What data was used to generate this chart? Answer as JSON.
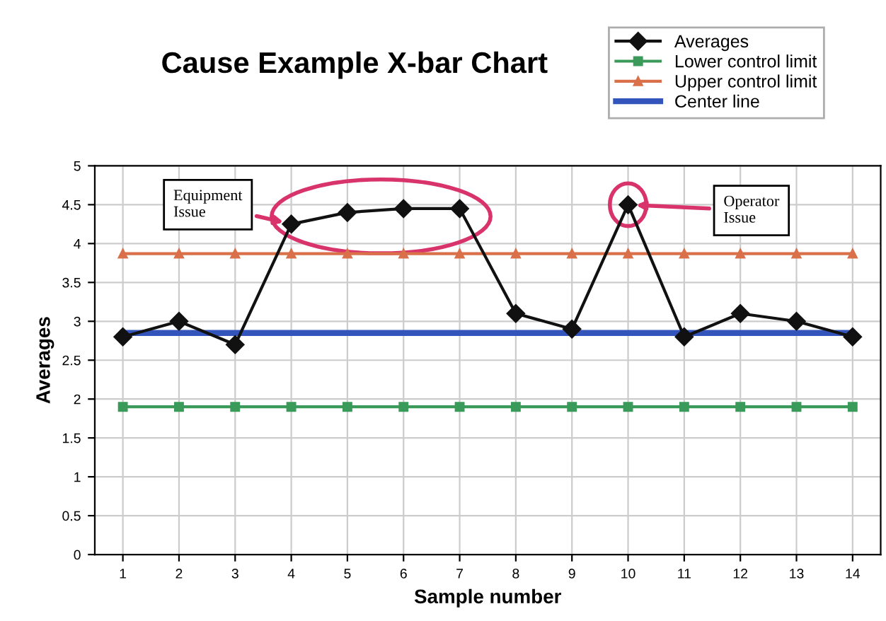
{
  "chart_data": {
    "type": "line",
    "title": "Cause Example X-bar Chart",
    "xlabel": "Sample number",
    "ylabel": "Averages",
    "categories": [
      "1",
      "2",
      "3",
      "4",
      "5",
      "6",
      "7",
      "8",
      "9",
      "10",
      "11",
      "12",
      "13",
      "14"
    ],
    "series": [
      {
        "name": "Averages",
        "color": "#111111",
        "marker": "diamond",
        "values": [
          2.8,
          3.0,
          2.7,
          4.25,
          4.4,
          4.45,
          4.45,
          3.1,
          2.9,
          4.5,
          2.8,
          3.1,
          3.0,
          2.8
        ]
      },
      {
        "name": "Lower control limit",
        "color": "#3a9a5a",
        "marker": "square",
        "values": [
          1.9,
          1.9,
          1.9,
          1.9,
          1.9,
          1.9,
          1.9,
          1.9,
          1.9,
          1.9,
          1.9,
          1.9,
          1.9,
          1.9
        ]
      },
      {
        "name": "Upper control limit",
        "color": "#d9704a",
        "marker": "triangle",
        "values": [
          3.87,
          3.87,
          3.87,
          3.87,
          3.87,
          3.87,
          3.87,
          3.87,
          3.87,
          3.87,
          3.87,
          3.87,
          3.87,
          3.87
        ]
      },
      {
        "name": "Center line",
        "color": "#3355bb",
        "marker": "none",
        "values": [
          2.85,
          2.85,
          2.85,
          2.85,
          2.85,
          2.85,
          2.85,
          2.85,
          2.85,
          2.85,
          2.85,
          2.85,
          2.85,
          2.85
        ]
      }
    ],
    "ylim": [
      0,
      5
    ],
    "yticks": [
      0,
      0.5,
      1,
      1.5,
      2,
      2.5,
      3,
      3.5,
      4,
      4.5,
      5
    ],
    "grid": true,
    "legend": "top right",
    "line_style": "solid",
    "annotations": [
      {
        "text": "Equipment\nIssue",
        "x": "4",
        "y": 4.25
      },
      {
        "text": "Operator\nIssue",
        "x": "10",
        "y": 4.5
      }
    ]
  }
}
